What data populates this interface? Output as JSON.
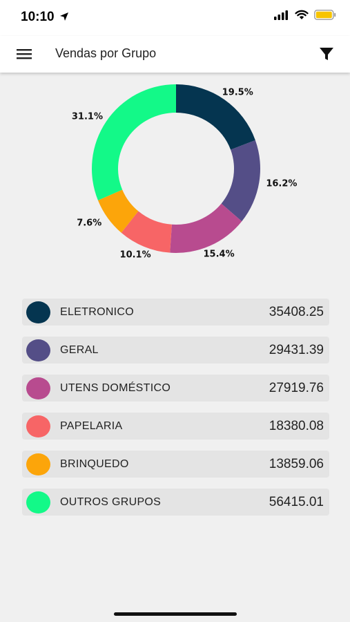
{
  "status_bar": {
    "time": "10:10"
  },
  "app_bar": {
    "title": "Vendas por Grupo",
    "menu_icon": "hamburger-menu-icon",
    "filter_icon": "funnel-filter-icon"
  },
  "chart_data": {
    "type": "pie",
    "subtype": "donut",
    "start": "top",
    "direction": "clockwise",
    "slices": [
      {
        "name": "ELETRONICO",
        "percent": 19.5,
        "label": "19.5%",
        "color": "#053550"
      },
      {
        "name": "GERAL",
        "percent": 16.2,
        "label": "16.2%",
        "color": "#544e87"
      },
      {
        "name": "UTENS DOMÉSTICO",
        "percent": 15.4,
        "label": "15.4%",
        "color": "#b84b8f"
      },
      {
        "name": "PAPELARIA",
        "percent": 10.1,
        "label": "10.1%",
        "color": "#f76566"
      },
      {
        "name": "BRINQUEDO",
        "percent": 7.6,
        "label": "7.6%",
        "color": "#fca50a"
      },
      {
        "name": "OUTROS GRUPOS",
        "percent": 31.1,
        "label": "31.1%",
        "color": "#13f988"
      }
    ]
  },
  "legend": {
    "items": [
      {
        "name": "ELETRONICO",
        "value": "35408.25",
        "color": "#053550"
      },
      {
        "name": "GERAL",
        "value": "29431.39",
        "color": "#544e87"
      },
      {
        "name": "UTENS DOMÉSTICO",
        "value": "27919.76",
        "color": "#b84b8f"
      },
      {
        "name": "PAPELARIA",
        "value": "18380.08",
        "color": "#f76566"
      },
      {
        "name": "BRINQUEDO",
        "value": "13859.06",
        "color": "#fca50a"
      },
      {
        "name": "OUTROS GRUPOS",
        "value": "56415.01",
        "color": "#13f988"
      }
    ]
  }
}
